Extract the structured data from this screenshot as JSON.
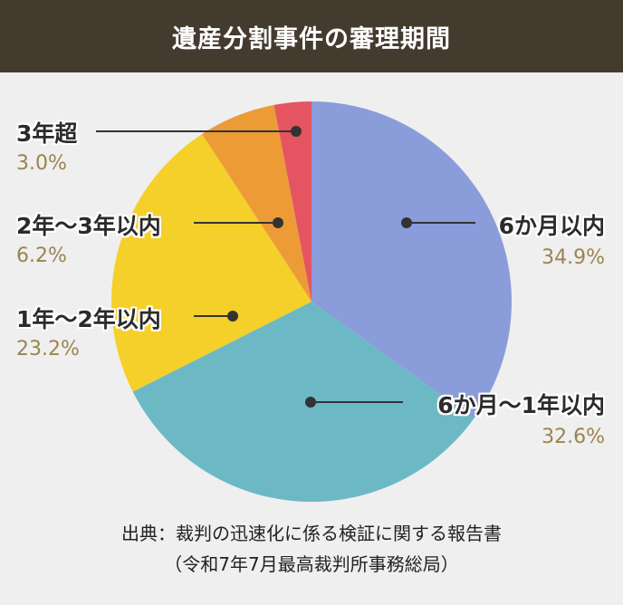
{
  "title": "遺産分割事件の審理期間",
  "chart_data": {
    "type": "pie",
    "title": "遺産分割事件の審理期間",
    "start_angle": "12 o'clock, clockwise",
    "slices": [
      {
        "label": "6か月以内",
        "value": 34.9,
        "pct": "34.9%",
        "color": "#8a9cd9"
      },
      {
        "label": "6か月〜1年以内",
        "value": 32.6,
        "pct": "32.6%",
        "color": "#6cb9c5"
      },
      {
        "label": "1年〜2年以内",
        "value": 23.2,
        "pct": "23.2%",
        "color": "#f5d02a"
      },
      {
        "label": "2年〜3年以内",
        "value": 6.2,
        "pct": "6.2%",
        "color": "#ed9b37"
      },
      {
        "label": "3年超",
        "value": 3.0,
        "pct": "3.0%",
        "color": "#e45461"
      }
    ]
  },
  "source": {
    "line1": "出典：裁判の迅速化に係る検証に関する報告書",
    "line2": "（令和7年7月最高裁判所事務総局）"
  }
}
